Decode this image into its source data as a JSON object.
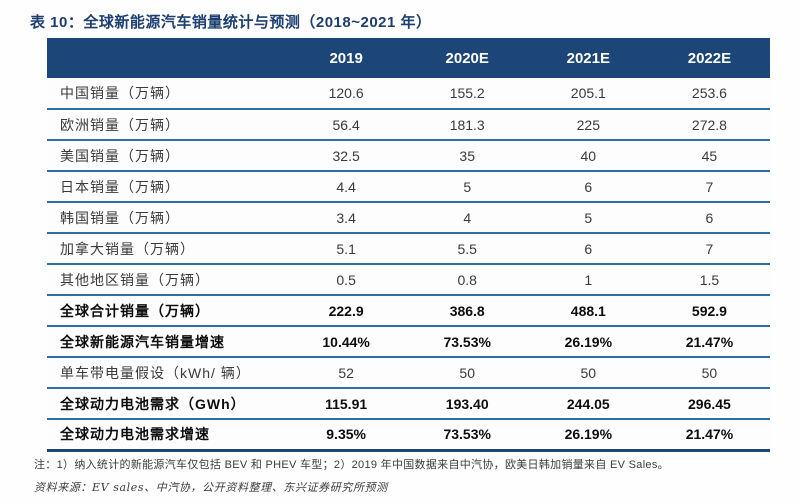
{
  "title": "表 10：全球新能源汽车销量统计与预测（2018~2021 年）",
  "colors": {
    "header_bg": "#1b4677",
    "title_text": "#1d3e6e",
    "row_separator": "#2e6da4"
  },
  "table": {
    "columns": [
      "",
      "2019",
      "2020E",
      "2021E",
      "2022E"
    ],
    "rows": [
      {
        "label": "中国销量（万辆）",
        "values": [
          "120.6",
          "155.2",
          "205.1",
          "253.6"
        ],
        "bold": false
      },
      {
        "label": "欧洲销量（万辆）",
        "values": [
          "56.4",
          "181.3",
          "225",
          "272.8"
        ],
        "bold": false
      },
      {
        "label": "美国销量（万辆）",
        "values": [
          "32.5",
          "35",
          "40",
          "45"
        ],
        "bold": false
      },
      {
        "label": "日本销量（万辆）",
        "values": [
          "4.4",
          "5",
          "6",
          "7"
        ],
        "bold": false
      },
      {
        "label": "韩国销量（万辆）",
        "values": [
          "3.4",
          "4",
          "5",
          "6"
        ],
        "bold": false
      },
      {
        "label": "加拿大销量（万辆）",
        "values": [
          "5.1",
          "5.5",
          "6",
          "7"
        ],
        "bold": false
      },
      {
        "label": "其他地区销量（万辆）",
        "values": [
          "0.5",
          "0.8",
          "1",
          "1.5"
        ],
        "bold": false
      },
      {
        "label": "全球合计销量（万辆）",
        "values": [
          "222.9",
          "386.8",
          "488.1",
          "592.9"
        ],
        "bold": true
      },
      {
        "label": "全球新能源汽车销量增速",
        "values": [
          "10.44%",
          "73.53%",
          "26.19%",
          "21.47%"
        ],
        "bold": true
      },
      {
        "label": "单车带电量假设（kWh/ 辆）",
        "values": [
          "52",
          "50",
          "50",
          "50"
        ],
        "bold": false
      },
      {
        "label": "全球动力电池需求（GWh）",
        "values": [
          "115.91",
          "193.40",
          "244.05",
          "296.45"
        ],
        "bold": true
      },
      {
        "label": "全球动力电池需求增速",
        "values": [
          "9.35%",
          "73.53%",
          "26.19%",
          "21.47%"
        ],
        "bold": true
      }
    ]
  },
  "notes": {
    "note_line": "注：1）纳入统计的新能源汽车仅包括 BEV 和 PHEV 车型；2）2019 年中国数据来自中汽协，欧美日韩加销量来自 EV Sales。",
    "source_line": "资料来源：EV sales、中汽协，公开资料整理、东兴证券研究所预测"
  }
}
